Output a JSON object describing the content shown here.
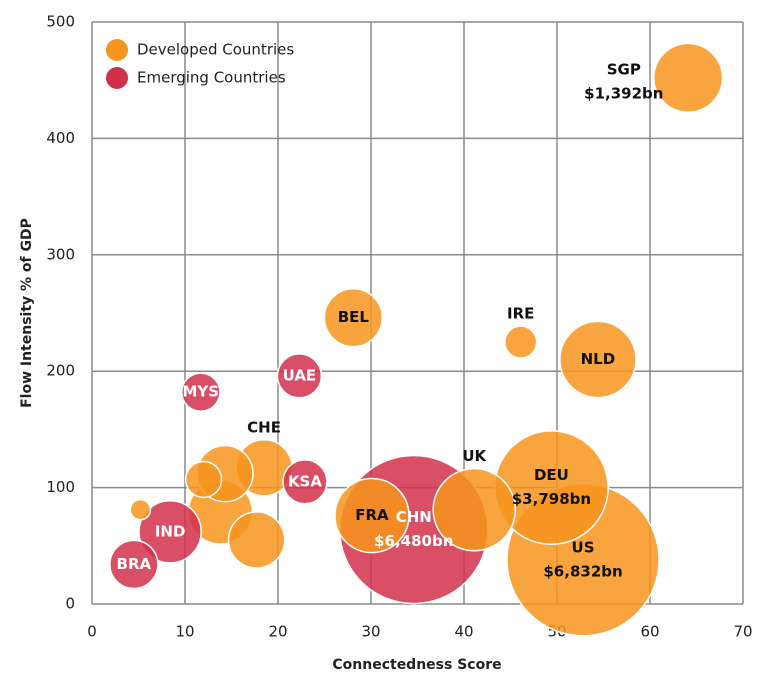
{
  "chart_data": {
    "type": "scatter",
    "xlabel": "Connectedness Score",
    "ylabel": "Flow Intensity % of GDP",
    "xlim": [
      0,
      70
    ],
    "xticks": [
      0,
      10,
      20,
      30,
      40,
      50,
      60,
      70
    ],
    "ylim": [
      0,
      500
    ],
    "yticks": [
      0,
      100,
      200,
      300,
      400,
      500
    ],
    "grid": true,
    "legend": "upper left",
    "series": [
      {
        "name": "Developed Countries",
        "color": "#f7941d",
        "labels": [
          "SGP",
          "BEL",
          "IRE",
          "NLD",
          "CHE",
          "UK",
          "DEU",
          "US",
          "FRA",
          null,
          null,
          null,
          null,
          null
        ],
        "size_labels": [
          "$1,392bn",
          null,
          null,
          null,
          null,
          null,
          "$3,798bn",
          "$6,832bn",
          null,
          null,
          null,
          null,
          null,
          null
        ],
        "x": [
          64.1,
          28.1,
          46.1,
          54.4,
          18.5,
          41.1,
          49.4,
          52.8,
          30.1,
          5.2,
          12.0,
          14.3,
          13.8,
          17.7
        ],
        "values": [
          452,
          246,
          225,
          210,
          117,
          81,
          100,
          38,
          76,
          81,
          107,
          112,
          79,
          55
        ],
        "sizes": [
          1392,
          990,
          300,
          1710,
          930,
          1990,
          3798,
          6832,
          1620,
          120,
          380,
          930,
          1210,
          930
        ]
      },
      {
        "name": "Emerging Countries",
        "color": "#d2304a",
        "labels": [
          "MYS",
          "UAE",
          "KSA",
          "IND",
          "BRA",
          "CHN"
        ],
        "size_labels": [
          null,
          null,
          null,
          null,
          null,
          "$6,480bn"
        ],
        "x": [
          11.7,
          22.3,
          22.9,
          8.4,
          4.5,
          34.6
        ],
        "values": [
          182,
          196,
          105,
          62,
          34,
          64
        ],
        "sizes": [
          430,
          570,
          570,
          1140,
          680,
          6480
        ]
      }
    ]
  }
}
